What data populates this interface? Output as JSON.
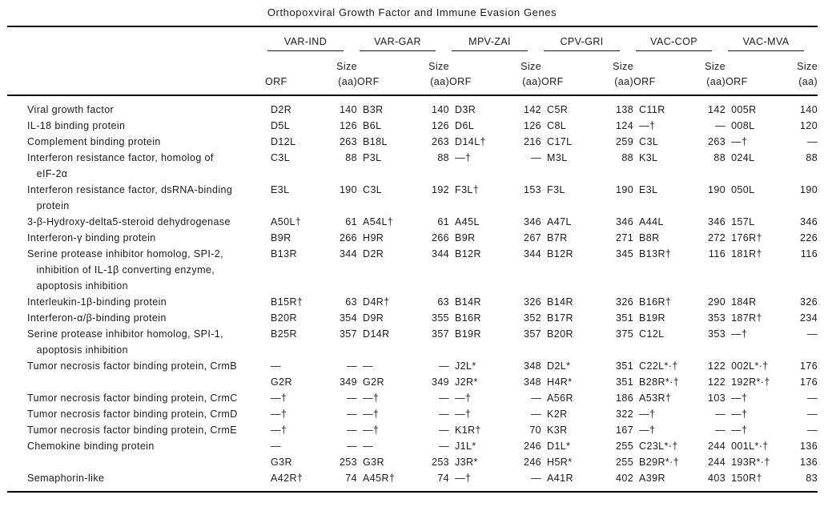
{
  "title": "Orthopoxviral Growth Factor and Immune Evasion Genes",
  "columns": {
    "viruses": [
      "VAR-IND",
      "VAR-GAR",
      "MPV-ZAI",
      "CPV-GRI",
      "VAC-COP",
      "VAC-MVA"
    ],
    "orf_label": "ORF",
    "size_label": "Size\n(aa)"
  },
  "rows": [
    {
      "gene": "Viral growth factor",
      "cells": [
        [
          "D2R",
          "140"
        ],
        [
          "B3R",
          "140"
        ],
        [
          "D3R",
          "142"
        ],
        [
          "C5R",
          "138"
        ],
        [
          "C11R",
          "142"
        ],
        [
          "005R",
          "140"
        ]
      ]
    },
    {
      "gene": "IL-18 binding protein",
      "cells": [
        [
          "D5L",
          "126"
        ],
        [
          "B6L",
          "126"
        ],
        [
          "D6L",
          "126"
        ],
        [
          "C8L",
          "124"
        ],
        [
          "—†",
          "—"
        ],
        [
          "008L",
          "120"
        ]
      ]
    },
    {
      "gene": "Complement binding protein",
      "cells": [
        [
          "D12L",
          "263"
        ],
        [
          "B18L",
          "263"
        ],
        [
          "D14L†",
          "216"
        ],
        [
          "C17L",
          "259"
        ],
        [
          "C3L",
          "263"
        ],
        [
          "—†",
          "—"
        ]
      ]
    },
    {
      "gene": "Interferon resistance factor, homolog of\n   eIF-2α",
      "cells": [
        [
          "C3L",
          "88"
        ],
        [
          "P3L",
          "88"
        ],
        [
          "—†",
          "—"
        ],
        [
          "M3L",
          "88"
        ],
        [
          "K3L",
          "88"
        ],
        [
          "024L",
          "88"
        ]
      ]
    },
    {
      "gene": "Interferon resistance factor, dsRNA-binding\n   protein",
      "cells": [
        [
          "E3L",
          "190"
        ],
        [
          "C3L",
          "192"
        ],
        [
          "F3L†",
          "153"
        ],
        [
          "F3L",
          "190"
        ],
        [
          "E3L",
          "190"
        ],
        [
          "050L",
          "190"
        ]
      ]
    },
    {
      "gene": "3-β-Hydroxy-delta5-steroid dehydrogenase",
      "cells": [
        [
          "A50L†",
          "61"
        ],
        [
          "A54L†",
          "61"
        ],
        [
          "A45L",
          "346"
        ],
        [
          "A47L",
          "346"
        ],
        [
          "A44L",
          "346"
        ],
        [
          "157L",
          "346"
        ]
      ]
    },
    {
      "gene": "Interferon-γ binding protein",
      "cells": [
        [
          "B9R",
          "266"
        ],
        [
          "H9R",
          "266"
        ],
        [
          "B9R",
          "267"
        ],
        [
          "B7R",
          "271"
        ],
        [
          "B8R",
          "272"
        ],
        [
          "176R†",
          "226"
        ]
      ]
    },
    {
      "gene": "Serine protease inhibitor homolog, SPI-2,\n   inhibition of IL-1β converting enzyme,\n   apoptosis inhibition",
      "cells": [
        [
          "B13R",
          "344"
        ],
        [
          "D2R",
          "344"
        ],
        [
          "B12R",
          "344"
        ],
        [
          "B12R",
          "345"
        ],
        [
          "B13R†",
          "116"
        ],
        [
          "181R†",
          "116"
        ]
      ]
    },
    {
      "gene": "Interleukin-1β-binding protein",
      "cells": [
        [
          "B15R†",
          "63"
        ],
        [
          "D4R†",
          "63"
        ],
        [
          "B14R",
          "326"
        ],
        [
          "B14R",
          "326"
        ],
        [
          "B16R†",
          "290"
        ],
        [
          "184R",
          "326"
        ]
      ]
    },
    {
      "gene": "Interferon-α/β-binding protein",
      "cells": [
        [
          "B20R",
          "354"
        ],
        [
          "D9R",
          "355"
        ],
        [
          "B16R",
          "352"
        ],
        [
          "B17R",
          "351"
        ],
        [
          "B19R",
          "353"
        ],
        [
          "187R†",
          "234"
        ]
      ]
    },
    {
      "gene": "Serine protease inhibitor homolog, SPI-1,\n   apoptosis inhibition",
      "cells": [
        [
          "B25R",
          "357"
        ],
        [
          "D14R",
          "357"
        ],
        [
          "B19R",
          "357"
        ],
        [
          "B20R",
          "375"
        ],
        [
          "C12L",
          "353"
        ],
        [
          "—†",
          "—"
        ]
      ]
    },
    {
      "gene": "Tumor necrosis factor binding protein, CrmB",
      "cells": [
        [
          "—",
          "—"
        ],
        [
          "—",
          "—"
        ],
        [
          "J2L*",
          "348"
        ],
        [
          "D2L*",
          "351"
        ],
        [
          "C22L*·†",
          "122"
        ],
        [
          "002L*·†",
          "176"
        ]
      ]
    },
    {
      "gene": "",
      "cells": [
        [
          "G2R",
          "349"
        ],
        [
          "G2R",
          "349"
        ],
        [
          "J2R*",
          "348"
        ],
        [
          "H4R*",
          "351"
        ],
        [
          "B28R*·†",
          "122"
        ],
        [
          "192R*·†",
          "176"
        ]
      ]
    },
    {
      "gene": "Tumor necrosis factor binding protein, CrmC",
      "cells": [
        [
          "—†",
          "—"
        ],
        [
          "—†",
          "—"
        ],
        [
          "—†",
          "—"
        ],
        [
          "A56R",
          "186"
        ],
        [
          "A53R†",
          "103"
        ],
        [
          "—†",
          "—"
        ]
      ]
    },
    {
      "gene": "Tumor necrosis factor binding protein, CrmD",
      "cells": [
        [
          "—†",
          "—"
        ],
        [
          "—†",
          "—"
        ],
        [
          "—†",
          "—"
        ],
        [
          "K2R",
          "322"
        ],
        [
          "—†",
          "—"
        ],
        [
          "—†",
          "—"
        ]
      ]
    },
    {
      "gene": "Tumor necrosis factor binding protein, CrmE",
      "cells": [
        [
          "—†",
          "—"
        ],
        [
          "—†",
          "—"
        ],
        [
          "K1R†",
          "70"
        ],
        [
          "K3R",
          "167"
        ],
        [
          "—†",
          "—"
        ],
        [
          "—†",
          "—"
        ]
      ]
    },
    {
      "gene": "Chemokine binding protein",
      "cells": [
        [
          "—",
          "—"
        ],
        [
          "—",
          "—"
        ],
        [
          "J1L*",
          "246"
        ],
        [
          "D1L*",
          "255"
        ],
        [
          "C23L*·†",
          "244"
        ],
        [
          "001L*·†",
          "136"
        ]
      ]
    },
    {
      "gene": "",
      "cells": [
        [
          "G3R",
          "253"
        ],
        [
          "G3R",
          "253"
        ],
        [
          "J3R*",
          "246"
        ],
        [
          "H5R*",
          "255"
        ],
        [
          "B29R*·†",
          "244"
        ],
        [
          "193R*·†",
          "136"
        ]
      ]
    },
    {
      "gene": "Semaphorin-like",
      "cells": [
        [
          "A42R†",
          "74"
        ],
        [
          "A45R†",
          "74"
        ],
        [
          "—†",
          "—"
        ],
        [
          "A41R",
          "402"
        ],
        [
          "A39R",
          "403"
        ],
        [
          "150R†",
          "83"
        ]
      ]
    }
  ]
}
